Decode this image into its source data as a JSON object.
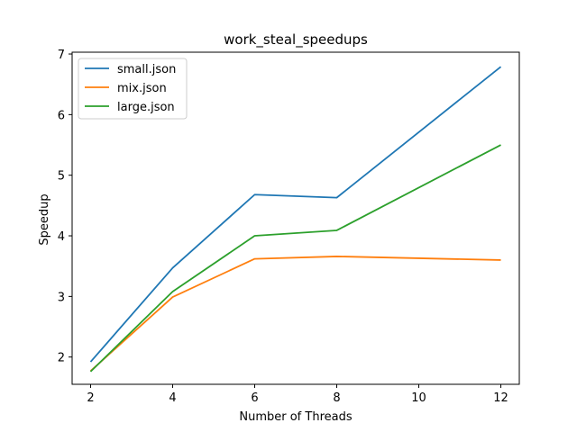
{
  "chart_data": {
    "type": "line",
    "title": "work_steal_speedups",
    "xlabel": "Number of Threads",
    "ylabel": "Speedup",
    "x": [
      2,
      4,
      6,
      8,
      12
    ],
    "xlim": [
      1.55,
      12.45
    ],
    "ylim": [
      1.55,
      7.03
    ],
    "xticks": [
      2,
      4,
      6,
      8,
      10,
      12
    ],
    "yticks": [
      2,
      3,
      4,
      5,
      6,
      7
    ],
    "grid": false,
    "legend_position": "top-left",
    "series": [
      {
        "name": "small.json",
        "color": "#1f77b4",
        "values": [
          1.92,
          3.47,
          4.68,
          4.63,
          6.79
        ]
      },
      {
        "name": "mix.json",
        "color": "#ff7f0e",
        "values": [
          1.77,
          2.99,
          3.62,
          3.66,
          3.6
        ]
      },
      {
        "name": "large.json",
        "color": "#2ca02c",
        "values": [
          1.76,
          3.08,
          4.0,
          4.09,
          5.5
        ]
      }
    ]
  }
}
